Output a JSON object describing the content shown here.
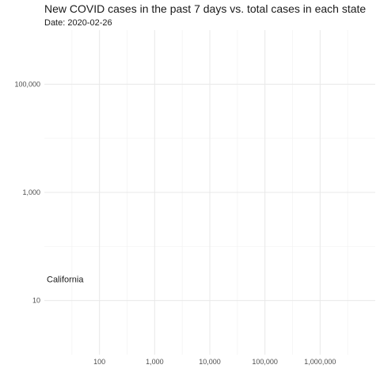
{
  "chart_data": {
    "type": "scatter",
    "title": "New COVID cases in the past 7 days vs. total cases in each state",
    "subtitle": "Date: 2020-02-26",
    "xlabel": "",
    "ylabel": "",
    "x_scale": "log10",
    "y_scale": "log10",
    "xlim": [
      10,
      10000000
    ],
    "ylim": [
      1,
      1000000
    ],
    "x_ticks": [
      {
        "value": 100,
        "label": "100"
      },
      {
        "value": 1000,
        "label": "1,000"
      },
      {
        "value": 10000,
        "label": "10,000"
      },
      {
        "value": 100000,
        "label": "100,000"
      },
      {
        "value": 1000000,
        "label": "1,000,000"
      }
    ],
    "y_ticks": [
      {
        "value": 10,
        "label": "10"
      },
      {
        "value": 1000,
        "label": "1,000"
      },
      {
        "value": 100000,
        "label": "100,000"
      }
    ],
    "grid": true,
    "points": [
      {
        "label": "California",
        "x": 10,
        "y": 25
      }
    ]
  }
}
